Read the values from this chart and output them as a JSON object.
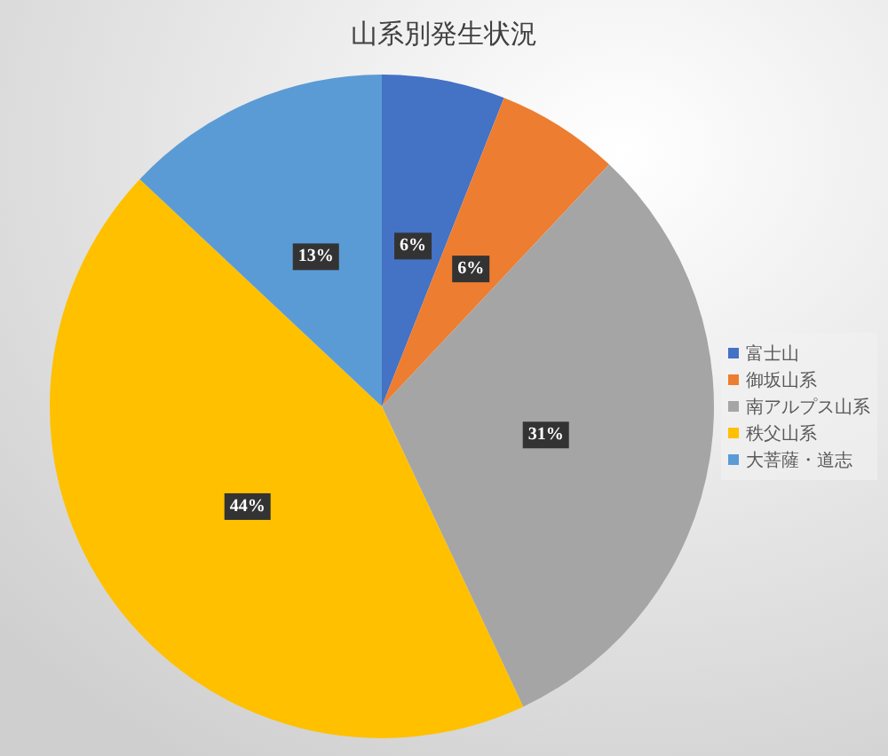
{
  "chart_data": {
    "type": "pie",
    "title": "山系別発生状況",
    "categories": [
      "富士山",
      "御坂山系",
      "南アルプス山系",
      "秩父山系",
      "大菩薩・道志"
    ],
    "values": [
      6,
      6,
      31,
      44,
      13
    ],
    "colors": [
      "#4472c4",
      "#ed7d31",
      "#a5a5a5",
      "#ffc000",
      "#5b9bd5"
    ],
    "value_labels": [
      "6%",
      "6%",
      "31%",
      "44%",
      "13%"
    ],
    "legend": "right"
  }
}
